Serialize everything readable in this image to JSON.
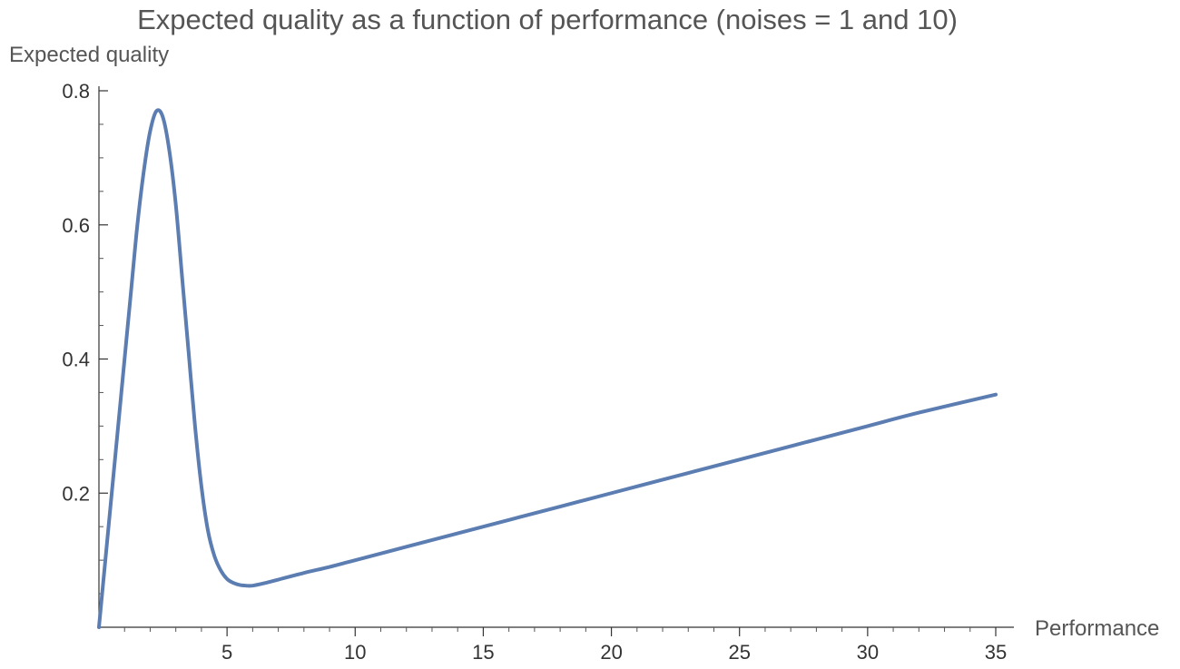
{
  "chart_data": {
    "type": "line",
    "title": "Expected quality as a function of performance (noises = 1 and 10)",
    "xlabel": "Performance",
    "ylabel": "Expected quality",
    "xlim": [
      0,
      35
    ],
    "ylim": [
      0,
      0.8
    ],
    "x_ticks": [
      5,
      10,
      15,
      20,
      25,
      30,
      35
    ],
    "y_ticks": [
      0.2,
      0.4,
      0.6,
      0.8
    ],
    "x_tick_labels": [
      "5",
      "10",
      "15",
      "20",
      "25",
      "30",
      "35"
    ],
    "y_tick_labels": [
      "0.2",
      "0.4",
      "0.6",
      "0.8"
    ],
    "grid": false,
    "line_color": "#5b7db1",
    "series": [
      {
        "x": [
          0,
          0.25,
          0.5,
          0.75,
          1.0,
          1.25,
          1.5,
          1.75,
          2.0,
          2.25,
          2.5,
          2.75,
          3.0,
          3.25,
          3.5,
          3.75,
          4.0,
          4.25,
          4.5,
          4.75,
          5.0,
          5.25,
          5.5,
          5.75,
          6.0,
          6.5,
          7,
          8,
          9,
          10,
          12,
          14,
          16,
          18,
          20,
          22,
          24,
          26,
          28,
          30,
          32,
          35
        ],
        "y": [
          0,
          0.1,
          0.2,
          0.3,
          0.4,
          0.5,
          0.6,
          0.68,
          0.74,
          0.77,
          0.76,
          0.71,
          0.63,
          0.52,
          0.41,
          0.3,
          0.21,
          0.145,
          0.107,
          0.085,
          0.072,
          0.066,
          0.063,
          0.062,
          0.062,
          0.066,
          0.071,
          0.081,
          0.09,
          0.1,
          0.12,
          0.14,
          0.16,
          0.18,
          0.2,
          0.22,
          0.24,
          0.26,
          0.28,
          0.3,
          0.32,
          0.347
        ]
      }
    ]
  }
}
